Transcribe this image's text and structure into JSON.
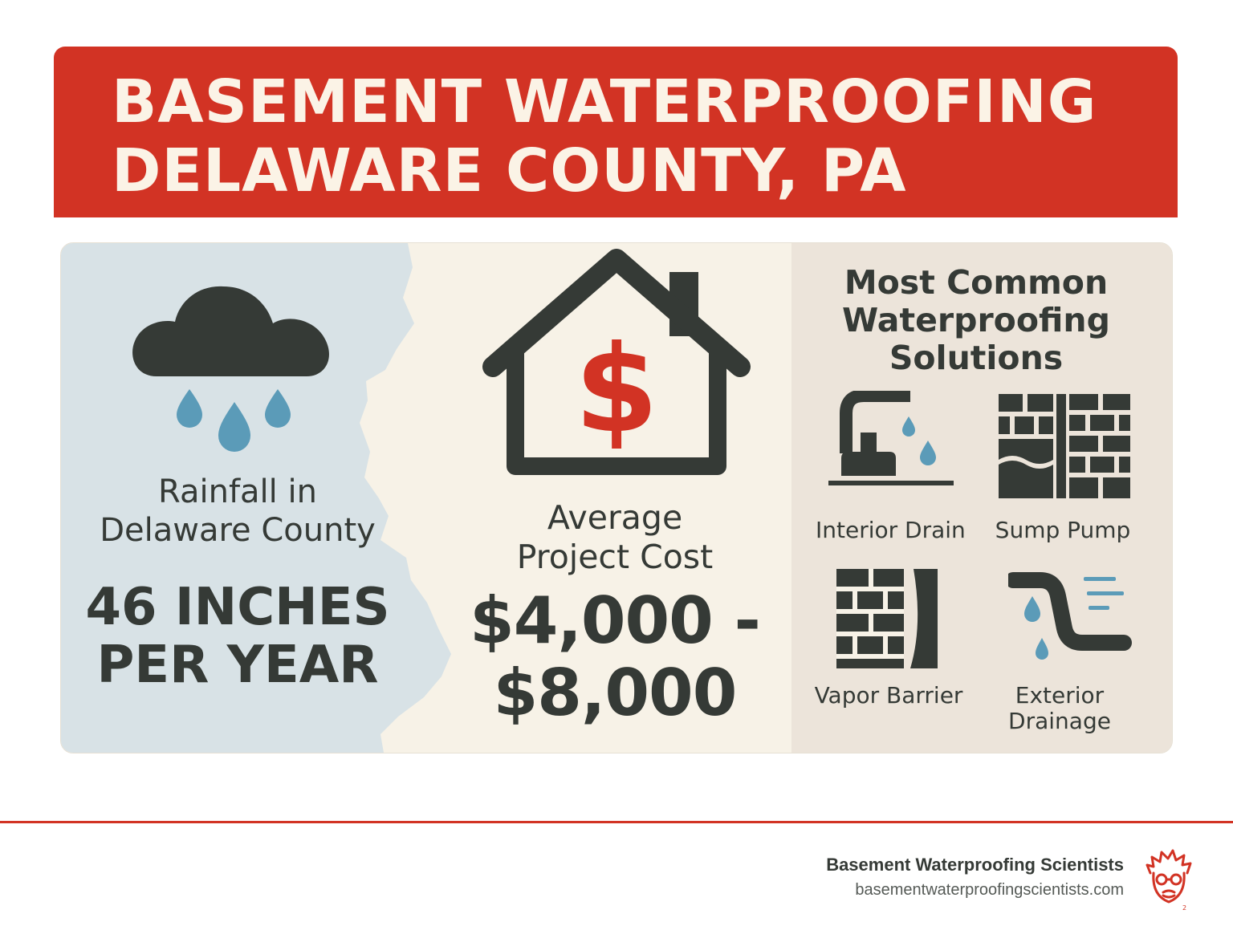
{
  "header": {
    "title_line1": "BASEMENT WATERPROOFING",
    "title_line2": "DELAWARE COUNTY, PA"
  },
  "rainfall": {
    "label_line1": "Rainfall in",
    "label_line2": "Delaware County",
    "value_line1": "46 INCHES",
    "value_line2": "PER YEAR",
    "icon": "rain-cloud-icon"
  },
  "cost": {
    "label_line1": "Average",
    "label_line2": "Project Cost",
    "value_line1": "$4,000 -",
    "value_line2": "$8,000",
    "icon": "house-dollar-icon"
  },
  "solutions": {
    "title_line1": "Most Common",
    "title_line2": "Waterproofing",
    "title_line3": "Solutions",
    "items": [
      {
        "label": "Interior Drain",
        "icon": "faucet-drain-icon"
      },
      {
        "label": "Sump Pump",
        "icon": "brick-wall-water-icon"
      },
      {
        "label": "Vapor Barrier",
        "icon": "brick-barrier-icon"
      },
      {
        "label_line1": "Exterior",
        "label_line2": "Drainage",
        "icon": "drain-pipe-icon"
      }
    ]
  },
  "footer": {
    "brand": "Basement Waterproofing Scientists",
    "url": "basementwaterproofingscientists.com",
    "logo": "scientist-logo-icon"
  },
  "colors": {
    "accent_red": "#d23324",
    "dark_gray": "#353a36",
    "water_blue": "#5b9bb8",
    "rain_panel": "#d8e2e6",
    "cream": "#f7f2e7",
    "beige": "#ece4da"
  }
}
